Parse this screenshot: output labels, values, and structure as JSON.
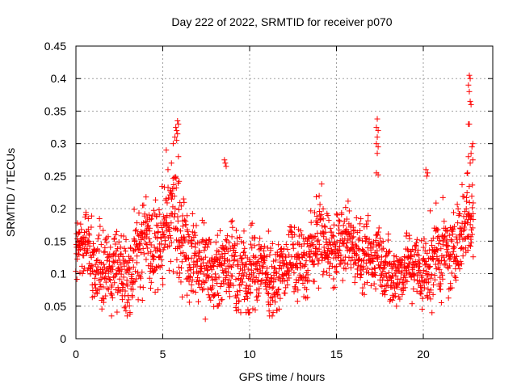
{
  "chart_data": {
    "type": "scatter",
    "title": "Day 222 of 2022, SRMTID for receiver p070",
    "xlabel": "GPS time / hours",
    "ylabel": "SRMTID / TECUs",
    "xlim": [
      0,
      24
    ],
    "ylim": [
      0,
      0.45
    ],
    "xticks": [
      0,
      5,
      10,
      15,
      20
    ],
    "xtick_labels": [
      "0",
      "5",
      "10",
      "15",
      "20"
    ],
    "yticks": [
      0,
      0.05,
      0.1,
      0.15,
      0.2,
      0.25,
      0.3,
      0.35,
      0.4,
      0.45
    ],
    "ytick_labels": [
      "0",
      "0.05",
      "0.1",
      "0.15",
      "0.2",
      "0.25",
      "0.3",
      "0.35",
      "0.4",
      "0.45"
    ],
    "grid": true,
    "marker": "+",
    "series": [
      {
        "name": "SRMTID",
        "color": "#ff0000",
        "sampling": "approximate estimated density of points; individual samples not readable",
        "x_range": [
          0,
          22.9
        ],
        "baseline_envelope": [
          {
            "x": 0,
            "low": 0.09,
            "high": 0.21
          },
          {
            "x": 1,
            "low": 0.055,
            "high": 0.22
          },
          {
            "x": 2,
            "low": 0.035,
            "high": 0.19
          },
          {
            "x": 3,
            "low": 0.035,
            "high": 0.2
          },
          {
            "x": 4,
            "low": 0.06,
            "high": 0.245
          },
          {
            "x": 5,
            "low": 0.08,
            "high": 0.28
          },
          {
            "x": 6,
            "low": 0.06,
            "high": 0.3
          },
          {
            "x": 7,
            "low": 0.04,
            "high": 0.2
          },
          {
            "x": 8,
            "low": 0.05,
            "high": 0.2
          },
          {
            "x": 9,
            "low": 0.04,
            "high": 0.2
          },
          {
            "x": 10,
            "low": 0.04,
            "high": 0.2
          },
          {
            "x": 11,
            "low": 0.035,
            "high": 0.19
          },
          {
            "x": 12,
            "low": 0.05,
            "high": 0.18
          },
          {
            "x": 13,
            "low": 0.06,
            "high": 0.21
          },
          {
            "x": 14,
            "low": 0.07,
            "high": 0.245
          },
          {
            "x": 15,
            "low": 0.08,
            "high": 0.235
          },
          {
            "x": 16,
            "low": 0.08,
            "high": 0.22
          },
          {
            "x": 17,
            "low": 0.06,
            "high": 0.21
          },
          {
            "x": 18,
            "low": 0.05,
            "high": 0.19
          },
          {
            "x": 19,
            "low": 0.05,
            "high": 0.18
          },
          {
            "x": 20,
            "low": 0.045,
            "high": 0.21
          },
          {
            "x": 21,
            "low": 0.04,
            "high": 0.22
          },
          {
            "x": 22,
            "low": 0.09,
            "high": 0.25
          },
          {
            "x": 22.9,
            "low": 0.1,
            "high": 0.3
          }
        ],
        "notable_points": [
          {
            "x": 5.85,
            "y": 0.335
          },
          {
            "x": 5.9,
            "y": 0.33
          },
          {
            "x": 5.75,
            "y": 0.325
          },
          {
            "x": 5.8,
            "y": 0.32
          },
          {
            "x": 5.7,
            "y": 0.31
          },
          {
            "x": 5.85,
            "y": 0.315
          },
          {
            "x": 5.6,
            "y": 0.3
          },
          {
            "x": 5.8,
            "y": 0.305
          },
          {
            "x": 5.2,
            "y": 0.29
          },
          {
            "x": 5.9,
            "y": 0.28
          },
          {
            "x": 5.5,
            "y": 0.27
          },
          {
            "x": 5.3,
            "y": 0.26
          },
          {
            "x": 8.55,
            "y": 0.275
          },
          {
            "x": 8.6,
            "y": 0.27
          },
          {
            "x": 8.65,
            "y": 0.265
          },
          {
            "x": 17.35,
            "y": 0.338
          },
          {
            "x": 17.3,
            "y": 0.325
          },
          {
            "x": 17.4,
            "y": 0.32
          },
          {
            "x": 17.35,
            "y": 0.31
          },
          {
            "x": 17.3,
            "y": 0.3
          },
          {
            "x": 17.4,
            "y": 0.295
          },
          {
            "x": 17.35,
            "y": 0.285
          },
          {
            "x": 17.3,
            "y": 0.255
          },
          {
            "x": 17.4,
            "y": 0.252
          },
          {
            "x": 20.15,
            "y": 0.26
          },
          {
            "x": 20.25,
            "y": 0.255
          },
          {
            "x": 20.2,
            "y": 0.25
          },
          {
            "x": 22.65,
            "y": 0.405
          },
          {
            "x": 22.7,
            "y": 0.4
          },
          {
            "x": 22.6,
            "y": 0.39
          },
          {
            "x": 22.65,
            "y": 0.38
          },
          {
            "x": 22.7,
            "y": 0.365
          },
          {
            "x": 22.75,
            "y": 0.36
          },
          {
            "x": 22.6,
            "y": 0.33
          },
          {
            "x": 22.65,
            "y": 0.33
          },
          {
            "x": 22.85,
            "y": 0.3
          },
          {
            "x": 22.8,
            "y": 0.295
          },
          {
            "x": 22.75,
            "y": 0.285
          },
          {
            "x": 22.6,
            "y": 0.28
          },
          {
            "x": 22.85,
            "y": 0.275
          },
          {
            "x": 22.7,
            "y": 0.27
          },
          {
            "x": 22.55,
            "y": 0.255
          },
          {
            "x": 2.05,
            "y": 0.035
          },
          {
            "x": 2.95,
            "y": 0.035
          },
          {
            "x": 7.45,
            "y": 0.03
          },
          {
            "x": 11.15,
            "y": 0.035
          },
          {
            "x": 11.3,
            "y": 0.035
          },
          {
            "x": 20.5,
            "y": 0.04
          }
        ]
      }
    ]
  }
}
